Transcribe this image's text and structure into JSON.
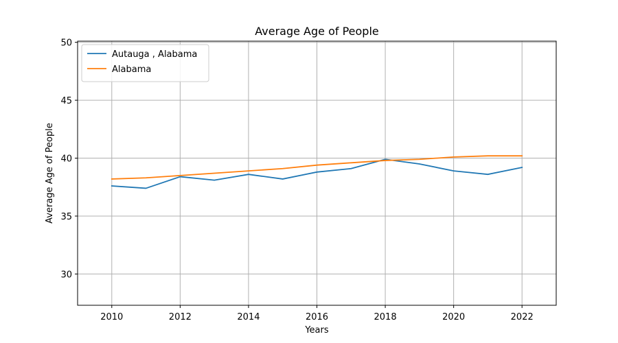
{
  "chart_data": {
    "type": "line",
    "title": "Average Age of People",
    "xlabel": "Years",
    "ylabel": "Average Age of People",
    "xlim": [
      2009,
      2023
    ],
    "ylim": [
      27.3,
      50.1
    ],
    "xticks": [
      2010,
      2012,
      2014,
      2016,
      2018,
      2020,
      2022
    ],
    "yticks": [
      30,
      35,
      40,
      45,
      50
    ],
    "grid": true,
    "legend_position": "top-left",
    "x": [
      2010,
      2011,
      2012,
      2013,
      2014,
      2015,
      2016,
      2017,
      2018,
      2019,
      2020,
      2021,
      2022
    ],
    "series": [
      {
        "name": "Autauga , Alabama",
        "color": "#1f77b4",
        "values": [
          37.6,
          37.4,
          38.4,
          38.1,
          38.6,
          38.2,
          38.8,
          39.1,
          39.9,
          39.5,
          38.9,
          38.6,
          39.2
        ]
      },
      {
        "name": "Alabama",
        "color": "#ff7f0e",
        "values": [
          38.2,
          38.3,
          38.5,
          38.7,
          38.9,
          39.1,
          39.4,
          39.6,
          39.8,
          39.9,
          40.1,
          40.2,
          40.2
        ]
      }
    ]
  }
}
